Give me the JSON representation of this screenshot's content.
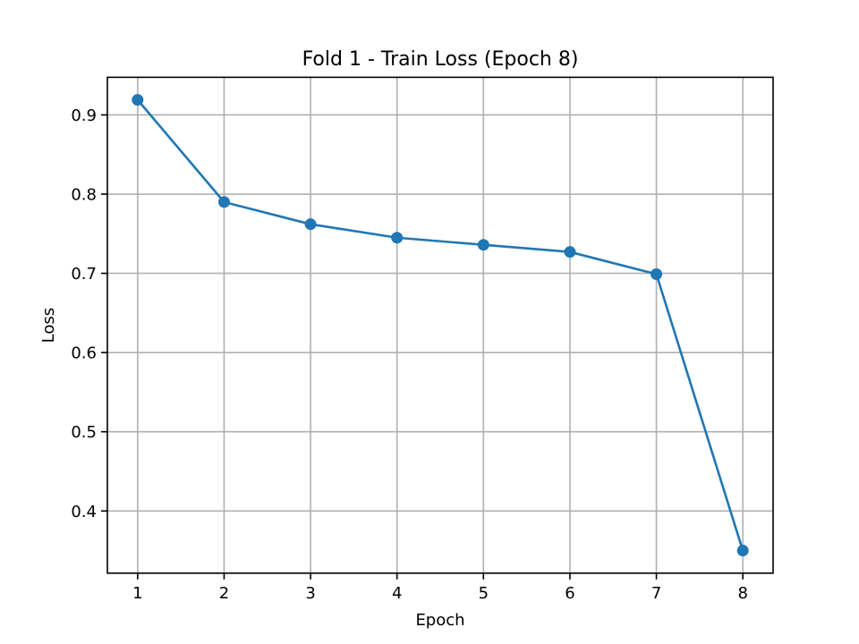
{
  "chart_data": {
    "type": "line",
    "title": "Fold 1 - Train Loss (Epoch 8)",
    "xlabel": "Epoch",
    "ylabel": "Loss",
    "x": [
      1,
      2,
      3,
      4,
      5,
      6,
      7,
      8
    ],
    "series": [
      {
        "values": [
          0.919,
          0.79,
          0.762,
          0.745,
          0.736,
          0.727,
          0.699,
          0.35
        ],
        "color": "#1f77b4",
        "marker": "circle"
      }
    ],
    "xlim": [
      0.65,
      8.35
    ],
    "ylim": [
      0.3215,
      0.9475
    ],
    "x_ticks": [
      "1",
      "2",
      "3",
      "4",
      "5",
      "6",
      "7",
      "8"
    ],
    "y_ticks": [
      "0.4",
      "0.5",
      "0.6",
      "0.7",
      "0.8",
      "0.9"
    ],
    "grid": true,
    "legend": false
  }
}
